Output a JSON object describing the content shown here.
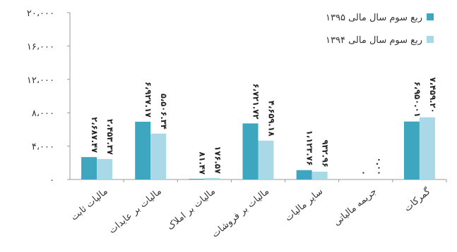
{
  "chart_data": {
    "type": "bar",
    "title": "",
    "xlabel": "",
    "ylabel": "",
    "ylim": [
      0,
      20000
    ],
    "yticks": [
      0,
      4000,
      8000,
      12000,
      16000,
      20000
    ],
    "ytick_labels": [
      "۰",
      "۴،۰۰۰",
      "۸،۰۰۰",
      "۱۲،۰۰۰",
      "۱۶،۰۰۰",
      "۲۰،۰۰۰"
    ],
    "grid": false,
    "legend_position": "top-right",
    "categories": [
      "مالیات ثابت",
      "مالیات بر عایدات",
      "مالیات بر املاک",
      "مالیات بر فروشات",
      "سایر مالیات",
      "جریمه مالیاتی",
      "گمرکات"
    ],
    "series": [
      {
        "name": "ربع سوم سال مالی ۱۳۹۵",
        "color": "#3ea6bf",
        "values": [
          2687.47,
          6927.17,
          81.47,
          6721.72,
          1123.76,
          0,
          6950.01
        ],
        "value_labels": [
          "۲،۶۸۷.۴۷",
          "۶،۹۲۷.۱۷",
          "۸۱.۴۷",
          "۶،۷۲۱.۷۲",
          "۱،۱۲۳.۷۶",
          "۰",
          "۶،۹۵۰.۰۱"
        ]
      },
      {
        "name": "ربع سوم سال مالی ۱۳۹۴",
        "color": "#a9d9e6",
        "values": [
          2453.37,
          5506.34,
          176.57,
          4659.18,
          932.96,
          0,
          7459.2
        ],
        "value_labels": [
          "۲،۴۵۳.۳۷",
          "۵،۵۰۶.۳۴",
          "۱۷۶.۵۷",
          "۴،۶۵۹.۱۸",
          "۹۳۲.۹۶",
          "۰.۰۰",
          "۷،۴۵۹.۲۰"
        ]
      }
    ]
  }
}
